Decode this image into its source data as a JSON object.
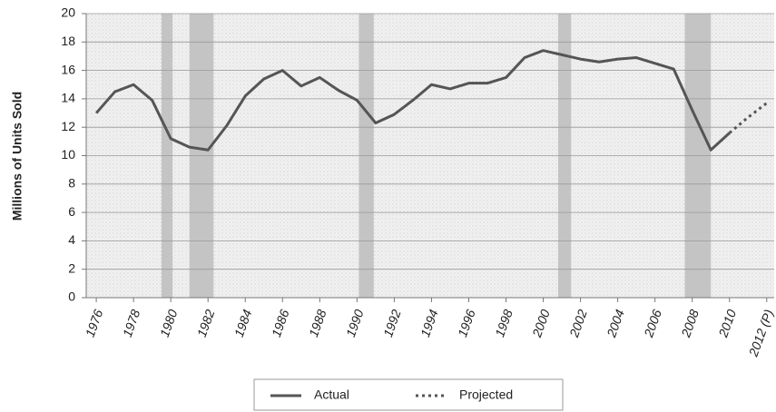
{
  "chart_data": {
    "type": "line",
    "y_label": "Millions of Units Sold",
    "x": [
      1976,
      1977,
      1978,
      1979,
      1980,
      1981,
      1982,
      1983,
      1984,
      1985,
      1986,
      1987,
      1988,
      1989,
      1990,
      1991,
      1992,
      1993,
      1994,
      1995,
      1996,
      1997,
      1998,
      1999,
      2000,
      2001,
      2002,
      2003,
      2004,
      2005,
      2006,
      2007,
      2008,
      2009,
      2010,
      2011,
      2012
    ],
    "series": [
      {
        "name": "Actual",
        "color": "#555555",
        "dash": false,
        "values": [
          13.0,
          14.5,
          15.0,
          13.9,
          11.2,
          10.6,
          10.4,
          12.1,
          14.2,
          15.4,
          16.0,
          14.9,
          15.5,
          14.6,
          13.9,
          12.3,
          12.9,
          13.9,
          15.0,
          14.7,
          15.1,
          15.1,
          15.5,
          16.9,
          17.4,
          17.1,
          16.8,
          16.6,
          16.8,
          16.9,
          16.5,
          16.1,
          13.2,
          10.4,
          11.6,
          null,
          null
        ]
      },
      {
        "name": "Projected",
        "color": "#555555",
        "dash": true,
        "values": [
          null,
          null,
          null,
          null,
          null,
          null,
          null,
          null,
          null,
          null,
          null,
          null,
          null,
          null,
          null,
          null,
          null,
          null,
          null,
          null,
          null,
          null,
          null,
          null,
          null,
          null,
          null,
          null,
          null,
          null,
          null,
          null,
          null,
          null,
          11.6,
          12.7,
          13.7
        ]
      }
    ],
    "recessions": [
      [
        1979.5,
        1980.1
      ],
      [
        1981.0,
        1982.3
      ],
      [
        1990.1,
        1990.9
      ],
      [
        2000.8,
        2001.5
      ],
      [
        2007.6,
        2009.0
      ]
    ],
    "recession_color": "#c4c4c4",
    "xlim": [
      1975.46,
      2012.4
    ],
    "xticks": [
      1976,
      1978,
      1980,
      1982,
      1984,
      1986,
      1988,
      1990,
      1992,
      1994,
      1996,
      1998,
      2000,
      2002,
      2004,
      2006,
      2008,
      2010,
      {
        "value": 2012,
        "label": "2012 (P)"
      }
    ],
    "ylim": [
      0,
      20
    ],
    "yticks": [
      0,
      2,
      4,
      6,
      8,
      10,
      12,
      14,
      16,
      18,
      20
    ],
    "grid": true
  }
}
